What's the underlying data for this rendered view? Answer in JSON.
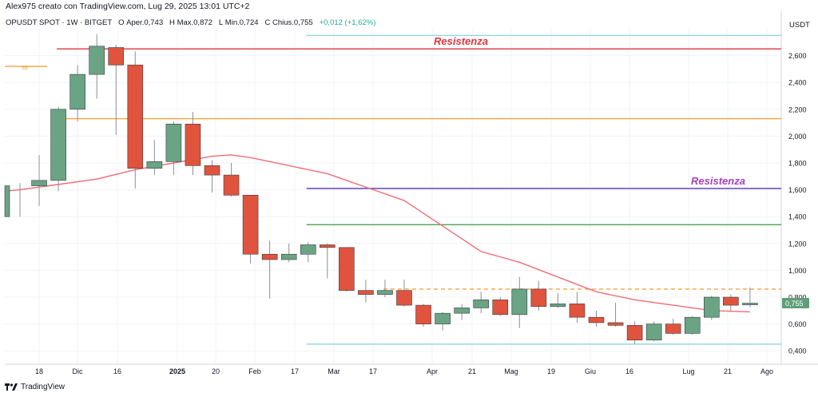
{
  "header": {
    "credit": "Alex975 creato con TradingView.com, Lug 29, 2025 13:01 UTC+2",
    "symbol": "OPUSDT SPOT · 1W · BITGET",
    "ohlc": [
      {
        "label": "O",
        "value": "Aper.0,743"
      },
      {
        "label": "H",
        "value": "Max.0,872"
      },
      {
        "label": "L",
        "value": "Min.0,724"
      },
      {
        "label": "C",
        "value": "Chius.0,755"
      }
    ],
    "change": "+0,012 (+1,62%)"
  },
  "currency": "USDT",
  "brand": "TradingView",
  "colors": {
    "up": "#6aa484",
    "down": "#e0533d",
    "ma": "#ef6d78",
    "resistance_top": "#e0333f",
    "resistance_mid": "#5b33b5",
    "green_line": "#3a9a3a",
    "orange_line": "#f7a23b",
    "cyan_line": "#8fd3e8",
    "last_price_bg": "#5f9e79",
    "annotation_red": "#e0333f",
    "annotation_purple": "#a73ec0"
  },
  "chart_data": {
    "type": "candlestick",
    "ylim": [
      0.3,
      2.8
    ],
    "y_ticks": [
      "0,400",
      "0,600",
      "0,800",
      "1,000",
      "1,200",
      "1,400",
      "1,600",
      "1,800",
      "2,000",
      "2,200",
      "2,400",
      "2,600"
    ],
    "x_ticks": [
      "18",
      "Dic",
      "16",
      "2025",
      "20",
      "Feb",
      "17",
      "Mar",
      "17",
      "Apr",
      "21",
      "Mag",
      "19",
      "Giu",
      "16",
      "Lug",
      "21",
      "Ago"
    ],
    "candles": [
      {
        "o": 1.4,
        "h": 1.65,
        "l": 1.4,
        "c": 1.63
      },
      {
        "o": 1.63,
        "h": 1.86,
        "l": 1.48,
        "c": 1.67
      },
      {
        "o": 1.67,
        "h": 2.22,
        "l": 1.59,
        "c": 2.2
      },
      {
        "o": 2.2,
        "h": 2.53,
        "l": 2.11,
        "c": 2.46
      },
      {
        "o": 2.46,
        "h": 2.76,
        "l": 2.28,
        "c": 2.67
      },
      {
        "o": 2.66,
        "h": 2.68,
        "l": 2.01,
        "c": 2.53
      },
      {
        "o": 2.53,
        "h": 2.63,
        "l": 1.61,
        "c": 1.76
      },
      {
        "o": 1.76,
        "h": 1.97,
        "l": 1.71,
        "c": 1.81
      },
      {
        "o": 1.81,
        "h": 2.11,
        "l": 1.71,
        "c": 2.09
      },
      {
        "o": 2.09,
        "h": 2.18,
        "l": 1.71,
        "c": 1.78
      },
      {
        "o": 1.78,
        "h": 1.82,
        "l": 1.58,
        "c": 1.71
      },
      {
        "o": 1.71,
        "h": 1.8,
        "l": 1.55,
        "c": 1.56
      },
      {
        "o": 1.56,
        "h": 1.56,
        "l": 1.05,
        "c": 1.12
      },
      {
        "o": 1.12,
        "h": 1.22,
        "l": 0.79,
        "c": 1.08
      },
      {
        "o": 1.08,
        "h": 1.2,
        "l": 1.06,
        "c": 1.12
      },
      {
        "o": 1.12,
        "h": 1.21,
        "l": 1.06,
        "c": 1.19
      },
      {
        "o": 1.19,
        "h": 1.2,
        "l": 0.94,
        "c": 1.17
      },
      {
        "o": 1.17,
        "h": 1.17,
        "l": 0.84,
        "c": 0.85
      },
      {
        "o": 0.85,
        "h": 0.93,
        "l": 0.76,
        "c": 0.82
      },
      {
        "o": 0.82,
        "h": 0.93,
        "l": 0.8,
        "c": 0.85
      },
      {
        "o": 0.85,
        "h": 0.93,
        "l": 0.73,
        "c": 0.74
      },
      {
        "o": 0.74,
        "h": 0.75,
        "l": 0.58,
        "c": 0.6
      },
      {
        "o": 0.6,
        "h": 0.69,
        "l": 0.55,
        "c": 0.68
      },
      {
        "o": 0.68,
        "h": 0.75,
        "l": 0.63,
        "c": 0.72
      },
      {
        "o": 0.72,
        "h": 0.84,
        "l": 0.68,
        "c": 0.78
      },
      {
        "o": 0.78,
        "h": 0.8,
        "l": 0.66,
        "c": 0.67
      },
      {
        "o": 0.67,
        "h": 0.95,
        "l": 0.57,
        "c": 0.86
      },
      {
        "o": 0.86,
        "h": 0.92,
        "l": 0.7,
        "c": 0.73
      },
      {
        "o": 0.73,
        "h": 0.83,
        "l": 0.72,
        "c": 0.75
      },
      {
        "o": 0.75,
        "h": 0.84,
        "l": 0.61,
        "c": 0.65
      },
      {
        "o": 0.65,
        "h": 0.7,
        "l": 0.58,
        "c": 0.61
      },
      {
        "o": 0.61,
        "h": 0.76,
        "l": 0.58,
        "c": 0.59
      },
      {
        "o": 0.59,
        "h": 0.62,
        "l": 0.45,
        "c": 0.48
      },
      {
        "o": 0.48,
        "h": 0.62,
        "l": 0.47,
        "c": 0.6
      },
      {
        "o": 0.6,
        "h": 0.64,
        "l": 0.52,
        "c": 0.53
      },
      {
        "o": 0.53,
        "h": 0.66,
        "l": 0.52,
        "c": 0.65
      },
      {
        "o": 0.65,
        "h": 0.81,
        "l": 0.63,
        "c": 0.8
      },
      {
        "o": 0.8,
        "h": 0.82,
        "l": 0.7,
        "c": 0.74
      },
      {
        "o": 0.743,
        "h": 0.872,
        "l": 0.724,
        "c": 0.755
      }
    ],
    "moving_average": [
      {
        "i": 0,
        "v": 1.6
      },
      {
        "i": 2,
        "v": 1.64
      },
      {
        "i": 4,
        "v": 1.68
      },
      {
        "i": 6,
        "v": 1.75
      },
      {
        "i": 8,
        "v": 1.8
      },
      {
        "i": 10,
        "v": 1.85
      },
      {
        "i": 11,
        "v": 1.86
      },
      {
        "i": 12,
        "v": 1.84
      },
      {
        "i": 14,
        "v": 1.78
      },
      {
        "i": 16,
        "v": 1.72
      },
      {
        "i": 17,
        "v": 1.67
      },
      {
        "i": 18,
        "v": 1.62
      },
      {
        "i": 20,
        "v": 1.52
      },
      {
        "i": 22,
        "v": 1.33
      },
      {
        "i": 24,
        "v": 1.14
      },
      {
        "i": 26,
        "v": 1.06
      },
      {
        "i": 28,
        "v": 0.95
      },
      {
        "i": 30,
        "v": 0.84
      },
      {
        "i": 32,
        "v": 0.78
      },
      {
        "i": 34,
        "v": 0.74
      },
      {
        "i": 36,
        "v": 0.7
      },
      {
        "i": 38,
        "v": 0.69
      }
    ],
    "levels": [
      {
        "name": "resistance-top",
        "y": 2.65,
        "style": "solid",
        "color": "#e0333f",
        "from": 2,
        "label": "Resistenza"
      },
      {
        "name": "orange-level",
        "y": 2.13,
        "style": "solid",
        "color": "#f7a23b",
        "from": 2
      },
      {
        "name": "resistance-mid",
        "y": 1.61,
        "style": "solid",
        "color": "#5b33b5",
        "from": 15,
        "label": "Resistenza"
      },
      {
        "name": "green-level",
        "y": 1.34,
        "style": "solid",
        "color": "#3a9a3a",
        "from": 15
      },
      {
        "name": "orange-dashed-level",
        "y": 0.86,
        "style": "dashed",
        "color": "#f7a23b",
        "from": 19
      },
      {
        "name": "cyan-top-level",
        "y": 2.75,
        "style": "solid",
        "color": "#8fd3e8",
        "from": 15
      },
      {
        "name": "cyan-bottom-level",
        "y": 0.45,
        "style": "solid",
        "color": "#8fd3e8",
        "from": 15
      }
    ],
    "orange_short": {
      "y": 2.52,
      "from": -1,
      "to": 1,
      "label": "38"
    },
    "last_price": {
      "value": 0.755,
      "label": "0,755"
    }
  }
}
